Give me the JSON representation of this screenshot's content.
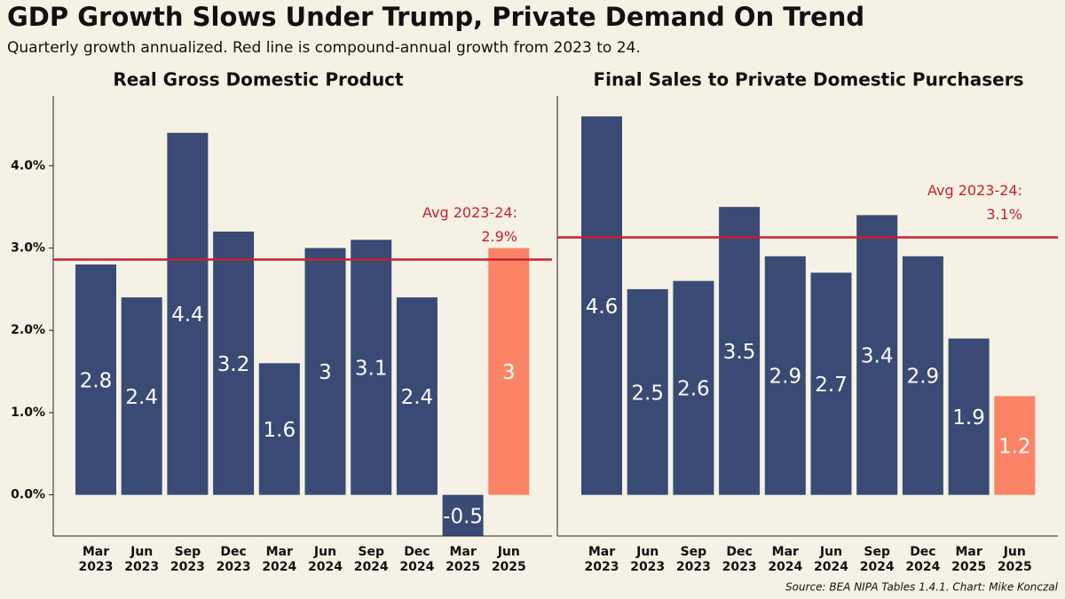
{
  "title": "GDP Growth Slows Under Trump, Private Demand On Trend",
  "subtitle": "Quarterly growth annualized. Red line is compound-annual growth from 2023 to 24.",
  "source": "Source: BEA NIPA Tables 1.4.1. Chart: Mike Konczal",
  "chart_data": [
    {
      "type": "bar",
      "title": "Real Gross Domestic Product",
      "categories": [
        [
          "Mar",
          "2023"
        ],
        [
          "Jun",
          "2023"
        ],
        [
          "Sep",
          "2023"
        ],
        [
          "Dec",
          "2023"
        ],
        [
          "Mar",
          "2024"
        ],
        [
          "Jun",
          "2024"
        ],
        [
          "Sep",
          "2024"
        ],
        [
          "Dec",
          "2024"
        ],
        [
          "Mar",
          "2025"
        ],
        [
          "Jun",
          "2025"
        ]
      ],
      "values": [
        2.8,
        2.4,
        4.4,
        3.2,
        1.6,
        3,
        3.1,
        2.4,
        -0.5,
        3
      ],
      "colors": [
        "#394a75",
        "#394a75",
        "#394a75",
        "#394a75",
        "#394a75",
        "#394a75",
        "#394a75",
        "#394a75",
        "#394a75",
        "#fa8465"
      ],
      "ylim": [
        -0.5,
        4.85
      ],
      "yticks": [
        {
          "value": 0,
          "label": "0.0%"
        },
        {
          "value": 1,
          "label": "1.0%"
        },
        {
          "value": 2,
          "label": "2.0%"
        },
        {
          "value": 3,
          "label": "3.0%"
        },
        {
          "value": 4,
          "label": "4.0%"
        }
      ],
      "reference_line": {
        "value": 2.86,
        "label": "Avg 2023-24:",
        "value_label": "2.9%",
        "color": "#c8202f"
      }
    },
    {
      "type": "bar",
      "title": "Final Sales to Private Domestic Purchasers",
      "categories": [
        [
          "Mar",
          "2023"
        ],
        [
          "Jun",
          "2023"
        ],
        [
          "Sep",
          "2023"
        ],
        [
          "Dec",
          "2023"
        ],
        [
          "Mar",
          "2024"
        ],
        [
          "Jun",
          "2024"
        ],
        [
          "Sep",
          "2024"
        ],
        [
          "Dec",
          "2024"
        ],
        [
          "Mar",
          "2025"
        ],
        [
          "Jun",
          "2025"
        ]
      ],
      "values": [
        4.6,
        2.5,
        2.6,
        3.5,
        2.9,
        2.7,
        3.4,
        2.9,
        1.9,
        1.2
      ],
      "colors": [
        "#394a75",
        "#394a75",
        "#394a75",
        "#394a75",
        "#394a75",
        "#394a75",
        "#394a75",
        "#394a75",
        "#394a75",
        "#fa8465"
      ],
      "ylim": [
        -0.5,
        4.85
      ],
      "reference_line": {
        "value": 3.13,
        "label": "Avg 2023-24:",
        "value_label": "3.1%",
        "color": "#c8202f"
      }
    }
  ]
}
